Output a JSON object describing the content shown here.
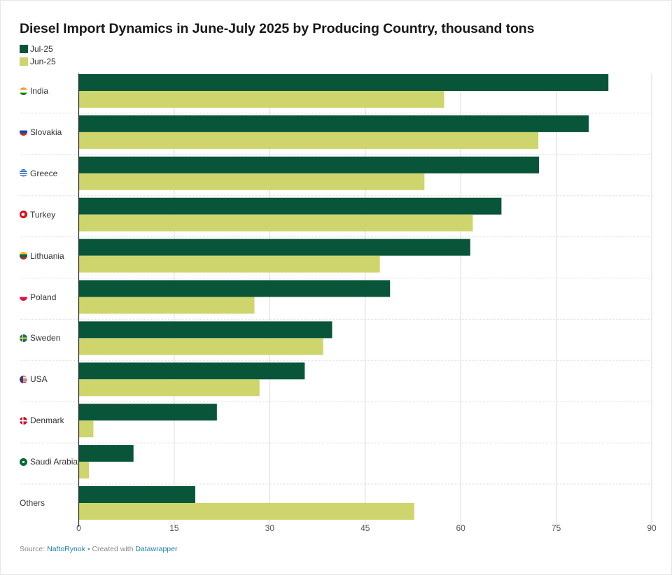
{
  "chart_data": {
    "type": "bar",
    "orientation": "horizontal",
    "title": "Diesel Import Dynamics in June-July 2025 by Producing Country, thousand tons",
    "categories": [
      "India",
      "Slovakia",
      "Greece",
      "Turkey",
      "Lithuania",
      "Poland",
      "Sweden",
      "USA",
      "Denmark",
      "Saudi Arabia",
      "Others"
    ],
    "flags": [
      "india-flag-icon",
      "slovakia-flag-icon",
      "greece-flag-icon",
      "turkey-flag-icon",
      "lithuania-flag-icon",
      "poland-flag-icon",
      "sweden-flag-icon",
      "usa-flag-icon",
      "denmark-flag-icon",
      "saudi-arabia-flag-icon",
      ""
    ],
    "series": [
      {
        "name": "Jul-25",
        "color": "#08553a",
        "values": [
          83.2,
          80.1,
          72.3,
          66.4,
          61.5,
          48.9,
          39.8,
          35.5,
          21.7,
          8.6,
          18.3
        ]
      },
      {
        "name": "Jun-25",
        "color": "#ced56c",
        "values": [
          57.4,
          72.2,
          54.3,
          61.9,
          47.3,
          27.6,
          38.4,
          28.4,
          2.3,
          1.6,
          52.7
        ]
      }
    ],
    "xlim": [
      0,
      90
    ],
    "xticks": [
      "0",
      "15",
      "30",
      "45",
      "60",
      "75",
      "90"
    ],
    "xtick_values": [
      0,
      15,
      30,
      45,
      60,
      75,
      90
    ],
    "grid": true,
    "legend_position": "top-left",
    "xlabel": "",
    "ylabel": ""
  },
  "footer": {
    "source_prefix": "Source: ",
    "source": "NaftoRynok",
    "separator": " • Created with ",
    "tool": "Datawrapper"
  }
}
